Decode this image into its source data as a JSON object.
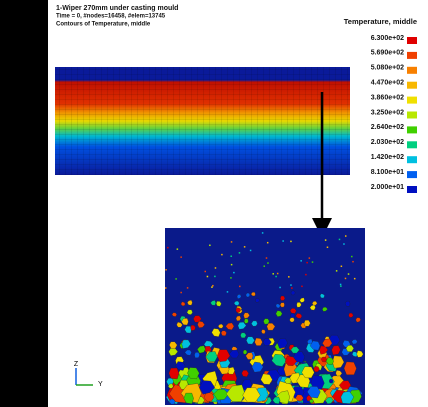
{
  "header": {
    "lines": [
      "1-Wiper 270mm under casting mould",
      "Time =      0, #nodes=16458, #elem=13745",
      "Contours of Temperature, middle"
    ]
  },
  "legend": {
    "title": "Temperature, middle",
    "entries": [
      {
        "label": "6.300e+02",
        "color": "#e00000"
      },
      {
        "label": "5.690e+02",
        "color": "#f04000"
      },
      {
        "label": "5.080e+02",
        "color": "#f88000"
      },
      {
        "label": "4.470e+02",
        "color": "#f8b800"
      },
      {
        "label": "3.860e+02",
        "color": "#f0e000"
      },
      {
        "label": "3.250e+02",
        "color": "#b8e800"
      },
      {
        "label": "2.640e+02",
        "color": "#40d000"
      },
      {
        "label": "2.030e+02",
        "color": "#00d080"
      },
      {
        "label": "1.420e+02",
        "color": "#00c0e0"
      },
      {
        "label": "8.100e+01",
        "color": "#0060f0"
      },
      {
        "label": "2.000e+01",
        "color": "#0010c0"
      }
    ]
  },
  "axes": {
    "vertical": "Z",
    "horizontal": "Y"
  }
}
